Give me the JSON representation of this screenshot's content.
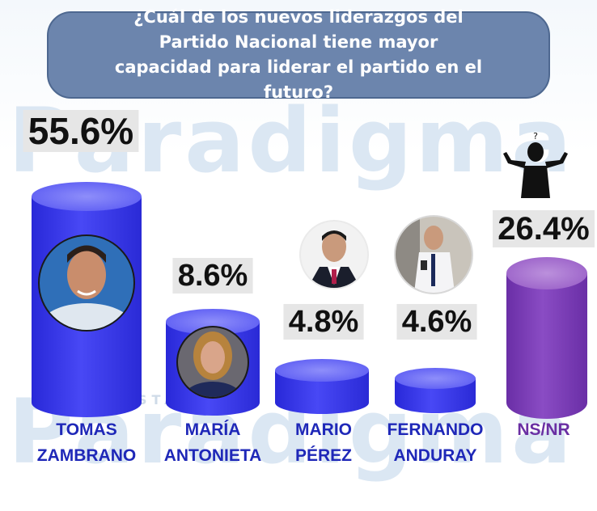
{
  "title": "¿Cuál de los nuevos liderazgos del Partido Nacional tiene mayor capacidad para liderar el partido en el futuro?",
  "watermark": "Paradigma",
  "watermark_sub": "ENCUESTADORA",
  "colors": {
    "bar_blue": "#3d3df0",
    "bar_top": "#7272f7",
    "bar_purple": "#7a3db5",
    "bar_purple_top": "#a472cf",
    "title_bg": "#6c85ad",
    "label_blue": "#1f28b8",
    "label_purple": "#6a2fa3"
  },
  "chart_data": {
    "type": "bar",
    "title": "¿Cuál de los nuevos liderazgos del Partido Nacional tiene mayor capacidad para liderar el partido en el futuro?",
    "categories": [
      "TOMAS ZAMBRANO",
      "MARÍA ANTONIETA",
      "MARIO PÉREZ",
      "FERNANDO ANDURAY",
      "NS/NR"
    ],
    "labels_lines": [
      [
        "TOMAS",
        "ZAMBRANO"
      ],
      [
        "MARÍA",
        "ANTONIETA"
      ],
      [
        "MARIO",
        "PÉREZ"
      ],
      [
        "FERNANDO",
        "ANDURAY"
      ],
      [
        "NS/NR"
      ]
    ],
    "values": [
      55.6,
      8.6,
      4.8,
      4.6,
      26.4
    ],
    "value_labels": [
      "55.6%",
      "8.6%",
      "4.8%",
      "4.6%",
      "26.4%"
    ],
    "unit": "%",
    "ylim": [
      0,
      60
    ],
    "xlabel": "",
    "ylabel": ""
  },
  "nsnr_icon": "shrug-person-icon",
  "question_mark": "?"
}
